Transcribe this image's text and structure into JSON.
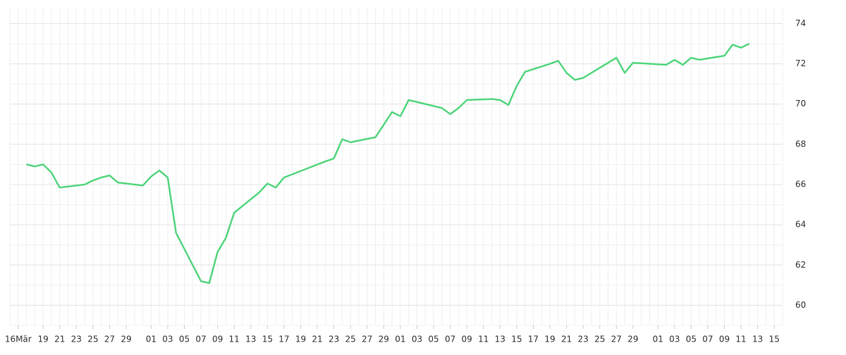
{
  "chart_data": {
    "type": "line",
    "x": [
      "03-17",
      "03-18",
      "03-19",
      "03-20",
      "03-21",
      "03-24",
      "03-25",
      "03-26",
      "03-27",
      "03-28",
      "03-31",
      "04-01",
      "04-02",
      "04-03",
      "04-04",
      "04-07",
      "04-08",
      "04-09",
      "04-10",
      "04-11",
      "04-14",
      "04-15",
      "04-16",
      "04-17",
      "04-22",
      "04-23",
      "04-24",
      "04-25",
      "04-28",
      "04-30",
      "05-01",
      "05-02",
      "05-06",
      "05-07",
      "05-08",
      "05-09",
      "05-12",
      "05-13",
      "05-14",
      "05-15",
      "05-16",
      "05-19",
      "05-20",
      "05-21",
      "05-22",
      "05-23",
      "05-27",
      "05-28",
      "05-29",
      "06-02",
      "06-03",
      "06-04",
      "06-05",
      "06-06",
      "06-09",
      "06-10",
      "06-11",
      "06-12"
    ],
    "series": [
      {
        "color": "#55d67f",
        "values": [
          67.0,
          66.9,
          67.0,
          66.6,
          65.85,
          66.0,
          66.2,
          66.35,
          66.45,
          66.1,
          65.95,
          66.4,
          66.7,
          66.35,
          63.6,
          61.2,
          61.1,
          62.65,
          63.35,
          64.6,
          65.6,
          66.05,
          65.85,
          66.35,
          67.15,
          67.3,
          68.25,
          68.1,
          68.35,
          69.6,
          69.4,
          70.2,
          69.8,
          69.5,
          69.8,
          70.2,
          70.25,
          70.2,
          69.95,
          70.9,
          71.6,
          72.0,
          72.15,
          71.55,
          71.2,
          71.3,
          72.3,
          71.55,
          72.05,
          71.95,
          72.2,
          71.95,
          72.3,
          72.2,
          72.4,
          72.95,
          72.8,
          73.0
        ]
      }
    ],
    "xlim": [
      "03-15",
      "06-16"
    ],
    "xticks": [
      {
        "value": "03-16",
        "label": "16Mär"
      },
      {
        "value": "03-19",
        "label": "19"
      },
      {
        "value": "03-21",
        "label": "21"
      },
      {
        "value": "03-23",
        "label": "23"
      },
      {
        "value": "03-25",
        "label": "25"
      },
      {
        "value": "03-27",
        "label": "27"
      },
      {
        "value": "03-29",
        "label": "29"
      },
      {
        "value": "04-01",
        "label": "01"
      },
      {
        "value": "04-03",
        "label": "03"
      },
      {
        "value": "04-05",
        "label": "05"
      },
      {
        "value": "04-07",
        "label": "07"
      },
      {
        "value": "04-09",
        "label": "09"
      },
      {
        "value": "04-11",
        "label": "11"
      },
      {
        "value": "04-13",
        "label": "13"
      },
      {
        "value": "04-15",
        "label": "15"
      },
      {
        "value": "04-17",
        "label": "17"
      },
      {
        "value": "04-19",
        "label": "19"
      },
      {
        "value": "04-21",
        "label": "21"
      },
      {
        "value": "04-23",
        "label": "23"
      },
      {
        "value": "04-25",
        "label": "25"
      },
      {
        "value": "04-27",
        "label": "27"
      },
      {
        "value": "04-29",
        "label": "29"
      },
      {
        "value": "05-01",
        "label": "01"
      },
      {
        "value": "05-03",
        "label": "03"
      },
      {
        "value": "05-05",
        "label": "05"
      },
      {
        "value": "05-07",
        "label": "07"
      },
      {
        "value": "05-09",
        "label": "09"
      },
      {
        "value": "05-11",
        "label": "11"
      },
      {
        "value": "05-13",
        "label": "13"
      },
      {
        "value": "05-15",
        "label": "15"
      },
      {
        "value": "05-17",
        "label": "17"
      },
      {
        "value": "05-19",
        "label": "19"
      },
      {
        "value": "05-21",
        "label": "21"
      },
      {
        "value": "05-23",
        "label": "23"
      },
      {
        "value": "05-25",
        "label": "25"
      },
      {
        "value": "05-27",
        "label": "27"
      },
      {
        "value": "05-29",
        "label": "29"
      },
      {
        "value": "06-01",
        "label": "01"
      },
      {
        "value": "06-03",
        "label": "03"
      },
      {
        "value": "06-05",
        "label": "05"
      },
      {
        "value": "06-07",
        "label": "07"
      },
      {
        "value": "06-09",
        "label": "09"
      },
      {
        "value": "06-11",
        "label": "11"
      },
      {
        "value": "06-13",
        "label": "13"
      },
      {
        "value": "06-15",
        "label": "15"
      }
    ],
    "ylim": [
      59,
      74.75
    ],
    "yticks": [
      60,
      62,
      64,
      66,
      68,
      70,
      72,
      74
    ],
    "grid": true
  }
}
